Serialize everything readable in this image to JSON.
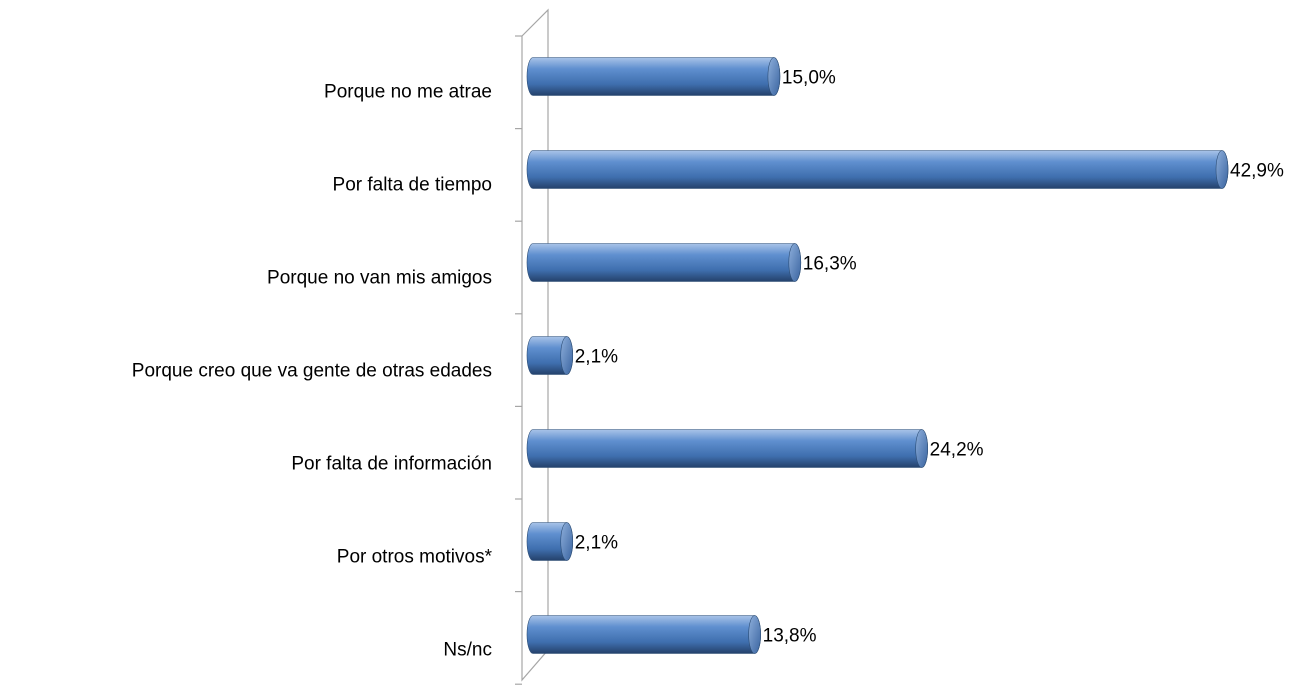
{
  "chart_data": {
    "type": "bar",
    "orientation": "horizontal",
    "categories": [
      "Porque no me  atrae",
      "Por falta de tiempo",
      "Porque no van mis amigos",
      "Porque creo que va gente de otras edades",
      "Por falta de información",
      "Por otros motivos*",
      "Ns/nc"
    ],
    "values": [
      15.0,
      42.9,
      16.3,
      2.1,
      24.2,
      2.1,
      13.8
    ],
    "value_labels": [
      "15,0%",
      "42,9%",
      "16,3%",
      "2,1%",
      "24,2%",
      "2,1%",
      "13,8%"
    ],
    "color": "#4f81bd"
  }
}
